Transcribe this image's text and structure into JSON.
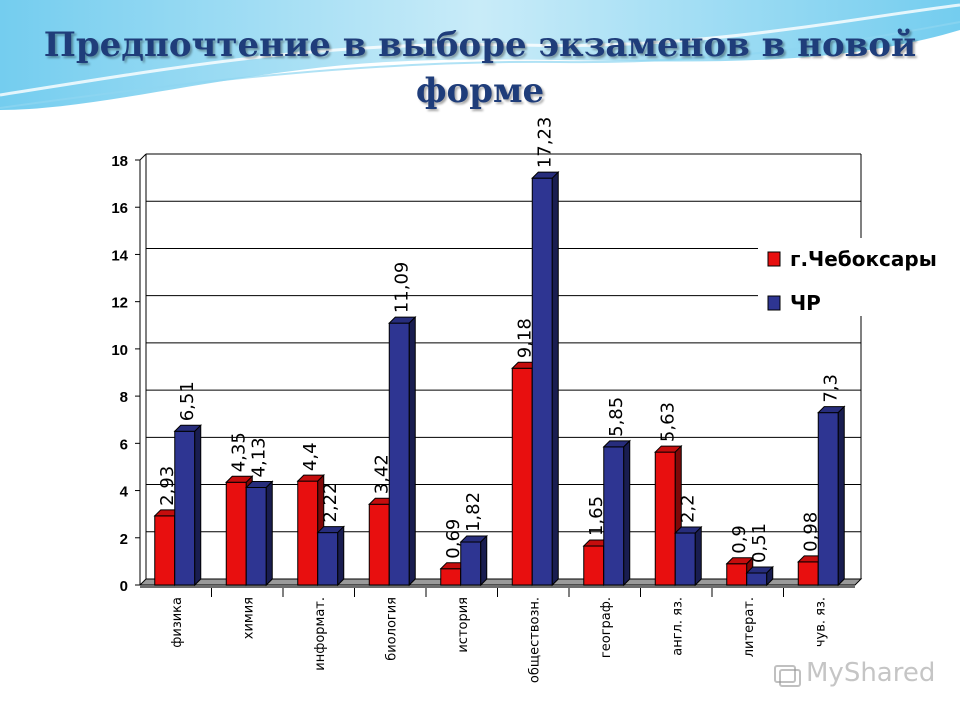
{
  "title": "Предпочтение в выборе экзаменов в новой форме",
  "watermark": "MyShared",
  "colors": {
    "series1": "#e80f0f",
    "series2": "#2e3592"
  },
  "chart_data": {
    "type": "bar",
    "categories": [
      "физика",
      "химия",
      "информат.",
      "биология",
      "история",
      "обществозн.",
      "географ.",
      "англ. яз.",
      "литерат.",
      "чув. яз."
    ],
    "series": [
      {
        "name": "г.Чебоксары",
        "values": [
          2.93,
          4.35,
          4.4,
          3.42,
          0.69,
          9.18,
          1.65,
          5.63,
          0.9,
          0.98
        ],
        "labels": [
          "2,93",
          "4,35",
          "4,4",
          "3,42",
          "0,69",
          "9,18",
          "1,65",
          "5,63",
          "0,9",
          "0,98"
        ]
      },
      {
        "name": "ЧР",
        "values": [
          6.51,
          4.13,
          2.22,
          11.09,
          1.82,
          17.23,
          5.85,
          2.2,
          0.51,
          7.3
        ],
        "labels": [
          "6,51",
          "4,13",
          "2,22",
          "11,09",
          "1,82",
          "17,23",
          "5,85",
          "2,2",
          "0,51",
          "7,3"
        ]
      }
    ],
    "yticks": [
      "0",
      "2",
      "4",
      "6",
      "8",
      "10",
      "12",
      "14",
      "16",
      "18"
    ],
    "ylim": [
      0,
      18
    ],
    "grid": true,
    "legend_position": "right"
  }
}
